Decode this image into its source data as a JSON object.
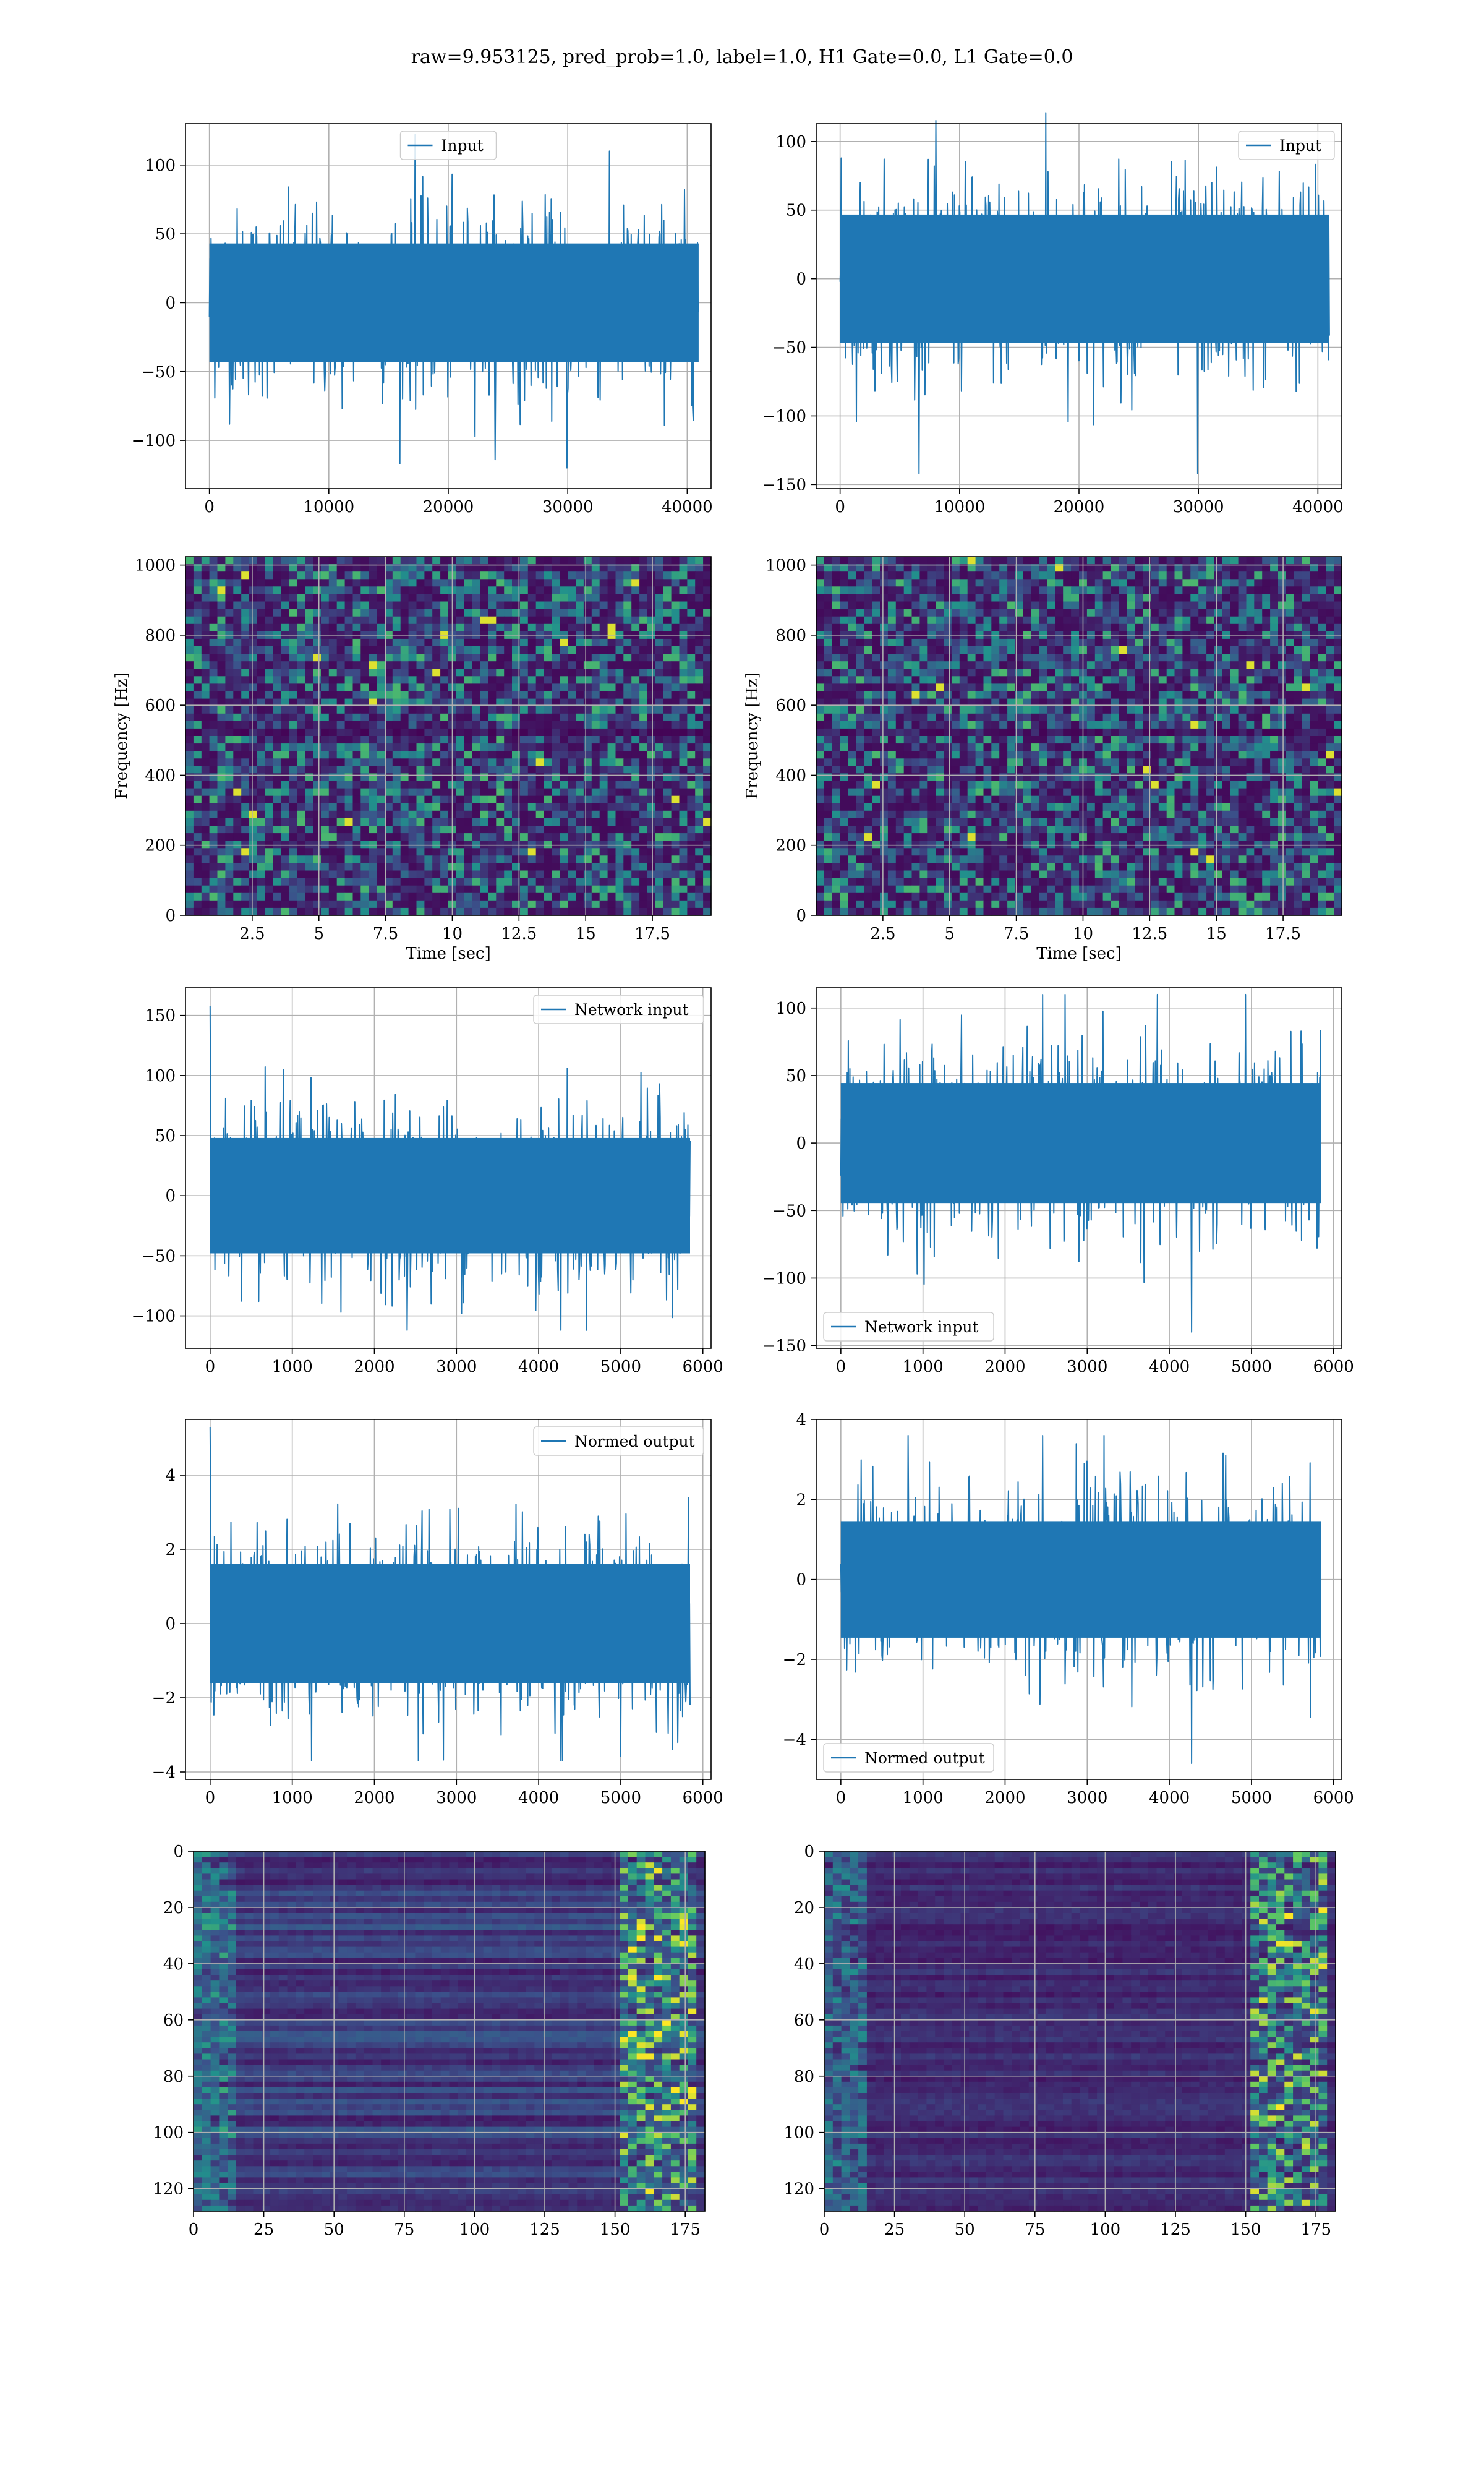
{
  "figure": {
    "suptitle": "raw=9.953125, pred_prob=1.0, label=1.0, H1 Gate=0.0, L1 Gate=0.0"
  },
  "colors": {
    "series": "#1f77b4",
    "grid": "#b0b0b0",
    "viridis_low": "#440154",
    "viridis_high": "#fde725"
  },
  "chart_data": [
    {
      "id": "ts_h1_raw",
      "type": "line",
      "title": "",
      "xlabel": "",
      "ylabel": "",
      "xlim": [
        -2000,
        42000
      ],
      "ylim": [
        -135,
        130
      ],
      "xticks": [
        0,
        10000,
        20000,
        30000,
        40000
      ],
      "yticks": [
        -100,
        -50,
        0,
        50,
        100
      ],
      "series": [
        {
          "name": "Input",
          "n": 40960,
          "x_range": [
            0,
            40960
          ],
          "envelope": [
            -120,
            122
          ]
        }
      ],
      "legend": "upper center",
      "grid": true
    },
    {
      "id": "ts_l1_raw",
      "type": "line",
      "title": "",
      "xlabel": "",
      "ylabel": "",
      "xlim": [
        -2000,
        42000
      ],
      "ylim": [
        -153,
        113
      ],
      "xticks": [
        0,
        10000,
        20000,
        30000,
        40000
      ],
      "yticks": [
        -150,
        -100,
        -50,
        0,
        50,
        100
      ],
      "series": [
        {
          "name": "Input",
          "n": 40960,
          "x_range": [
            0,
            40960
          ],
          "envelope": [
            -142,
            121
          ]
        }
      ],
      "legend": "upper right",
      "grid": true
    },
    {
      "id": "spec_h1",
      "type": "heatmap",
      "title": "",
      "xlabel": "Time [sec]",
      "ylabel": "Frequency [Hz]",
      "xlim": [
        0,
        19.7
      ],
      "ylim": [
        0,
        1024
      ],
      "xticks": [
        2.5,
        5.0,
        7.5,
        10.0,
        12.5,
        15.0,
        17.5
      ],
      "yticks": [
        0,
        200,
        400,
        600,
        800,
        1000
      ],
      "colormap": "viridis",
      "grid": true
    },
    {
      "id": "spec_l1",
      "type": "heatmap",
      "title": "",
      "xlabel": "Time [sec]",
      "ylabel": "Frequency [Hz]",
      "xlim": [
        0,
        19.7
      ],
      "ylim": [
        0,
        1024
      ],
      "xticks": [
        2.5,
        5.0,
        7.5,
        10.0,
        12.5,
        15.0,
        17.5
      ],
      "yticks": [
        0,
        200,
        400,
        600,
        800,
        1000
      ],
      "colormap": "viridis",
      "grid": true
    },
    {
      "id": "ts_h1_net",
      "type": "line",
      "title": "",
      "xlabel": "",
      "ylabel": "",
      "xlim": [
        -300,
        6100
      ],
      "ylim": [
        -127,
        173
      ],
      "xticks": [
        0,
        1000,
        2000,
        3000,
        4000,
        5000,
        6000
      ],
      "yticks": [
        -100,
        -50,
        0,
        50,
        100,
        150
      ],
      "series": [
        {
          "name": "Network input",
          "n": 5844,
          "x_range": [
            0,
            5844
          ],
          "envelope": [
            -112,
            158
          ]
        }
      ],
      "legend": "upper right",
      "grid": true
    },
    {
      "id": "ts_l1_net",
      "type": "line",
      "title": "",
      "xlabel": "",
      "ylabel": "",
      "xlim": [
        -300,
        6100
      ],
      "ylim": [
        -152,
        115
      ],
      "xticks": [
        0,
        1000,
        2000,
        3000,
        4000,
        5000,
        6000
      ],
      "yticks": [
        -150,
        -100,
        -50,
        0,
        50,
        100
      ],
      "series": [
        {
          "name": "Network input",
          "n": 5844,
          "x_range": [
            0,
            5844
          ],
          "envelope": [
            -140,
            110
          ]
        }
      ],
      "legend": "lower left",
      "grid": true
    },
    {
      "id": "ts_h1_norm",
      "type": "line",
      "title": "",
      "xlabel": "",
      "ylabel": "",
      "xlim": [
        -300,
        6100
      ],
      "ylim": [
        -4.2,
        5.5
      ],
      "xticks": [
        0,
        1000,
        2000,
        3000,
        4000,
        5000,
        6000
      ],
      "yticks": [
        -4,
        -2,
        0,
        2,
        4
      ],
      "series": [
        {
          "name": "Normed output",
          "n": 5844,
          "x_range": [
            0,
            5844
          ],
          "envelope": [
            -3.7,
            5.3
          ]
        }
      ],
      "legend": "upper right",
      "grid": true
    },
    {
      "id": "ts_l1_norm",
      "type": "line",
      "title": "",
      "xlabel": "",
      "ylabel": "",
      "xlim": [
        -300,
        6100
      ],
      "ylim": [
        -5.0,
        4.0
      ],
      "xticks": [
        0,
        1000,
        2000,
        3000,
        4000,
        5000,
        6000
      ],
      "yticks": [
        -4,
        -2,
        0,
        2,
        4
      ],
      "series": [
        {
          "name": "Normed output",
          "n": 5844,
          "x_range": [
            0,
            5844
          ],
          "envelope": [
            -4.6,
            3.6
          ]
        }
      ],
      "legend": "lower left",
      "grid": true
    },
    {
      "id": "feat_h1",
      "type": "heatmap",
      "title": "",
      "xlabel": "",
      "ylabel": "",
      "xlim": [
        0,
        182
      ],
      "ylim": [
        128,
        0
      ],
      "xticks": [
        0,
        25,
        50,
        75,
        100,
        125,
        150,
        175
      ],
      "yticks": [
        0,
        20,
        40,
        60,
        80,
        100,
        120
      ],
      "colormap": "viridis",
      "grid": true
    },
    {
      "id": "feat_l1",
      "type": "heatmap",
      "title": "",
      "xlabel": "",
      "ylabel": "",
      "xlim": [
        0,
        182
      ],
      "ylim": [
        128,
        0
      ],
      "xticks": [
        0,
        25,
        50,
        75,
        100,
        125,
        150,
        175
      ],
      "yticks": [
        0,
        20,
        40,
        60,
        80,
        100,
        120
      ],
      "colormap": "viridis",
      "grid": true
    }
  ]
}
